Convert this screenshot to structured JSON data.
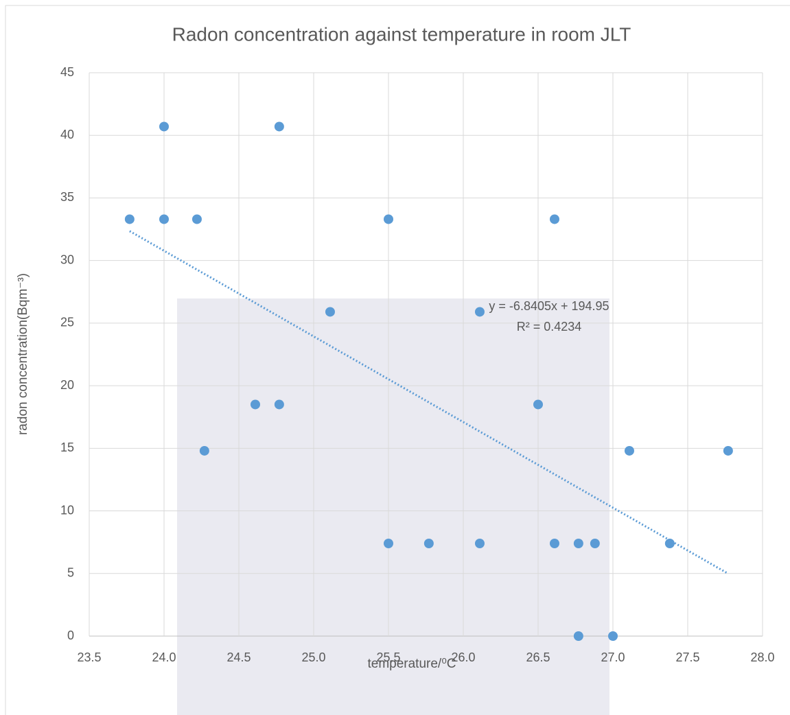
{
  "chart_data": {
    "type": "scatter",
    "title": "Radon concentration against temperature in room JLT",
    "x_label": "temperature/⁰C",
    "y_label": "radon concentration(Bqm⁻³)",
    "x": [
      23.77,
      24.0,
      24.0,
      24.22,
      24.27,
      24.61,
      24.77,
      24.77,
      25.11,
      25.5,
      25.5,
      25.77,
      26.11,
      26.11,
      26.5,
      26.61,
      26.61,
      26.77,
      26.77,
      26.88,
      27.0,
      27.11,
      27.38,
      27.77
    ],
    "values": [
      33.3,
      40.7,
      33.3,
      33.3,
      14.8,
      18.5,
      18.5,
      40.7,
      25.9,
      33.3,
      7.4,
      7.4,
      25.9,
      7.4,
      18.5,
      33.3,
      7.4,
      7.4,
      0,
      7.4,
      0,
      14.8,
      7.4,
      14.8
    ],
    "color": "#5b9bd5",
    "trendline": {
      "slope": -6.8405,
      "intercept": 194.95,
      "label": "y = -6.8405x + 194.95",
      "r2_label": "R² = 0.4234"
    },
    "xlim": [
      23.5,
      28.0
    ],
    "ylim": [
      0,
      45
    ],
    "xticks": [
      23.5,
      {
        "value": 24,
        "label": "24.0"
      },
      24.5,
      {
        "value": 25,
        "label": "25.0"
      },
      25.5,
      {
        "value": 26,
        "label": "26.0"
      },
      26.5,
      {
        "value": 27,
        "label": "27.0"
      },
      27.5,
      {
        "value": 28,
        "label": "28.0"
      }
    ],
    "yticks": [
      0,
      5,
      10,
      15,
      20,
      25,
      30,
      35,
      40,
      45
    ],
    "grid": true
  }
}
